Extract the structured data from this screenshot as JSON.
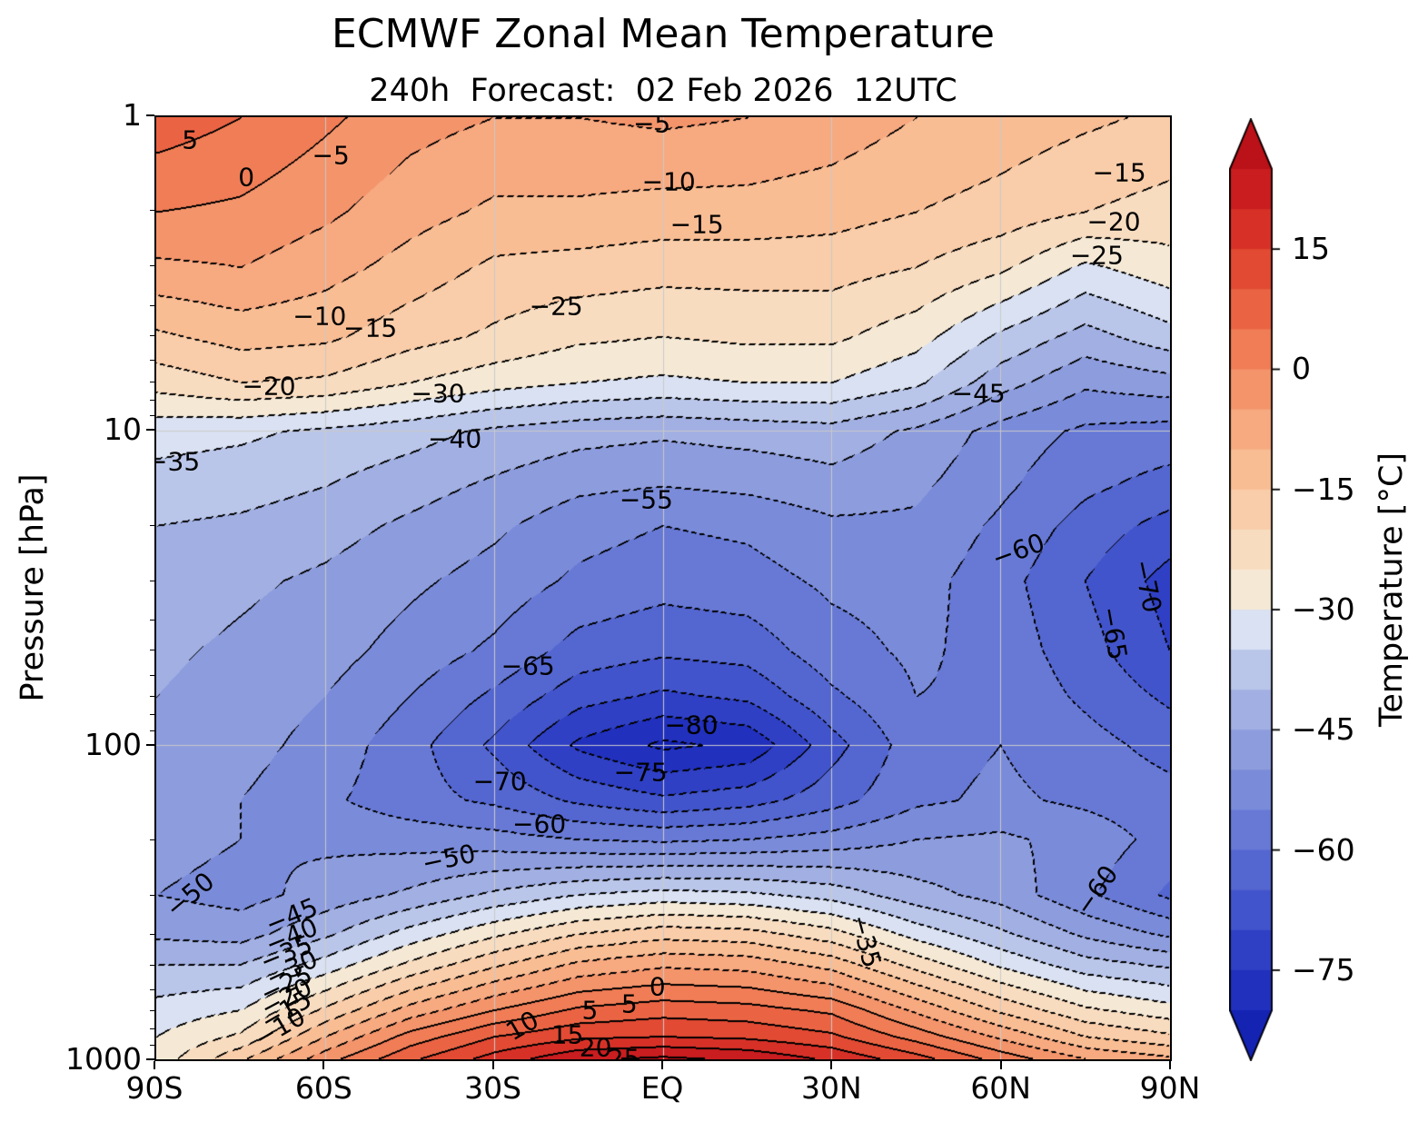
{
  "header": {
    "title": "ECMWF Zonal Mean Temperature",
    "subtitle": "240h  Forecast:  02 Feb 2026  12UTC"
  },
  "chart_data": {
    "type": "contour",
    "title": "ECMWF Zonal Mean Temperature",
    "subtitle": "240h  Forecast:  02 Feb 2026  12UTC",
    "xlabel": "",
    "ylabel": "Pressure [hPa]",
    "y_scale": "log",
    "y_range": [
      1,
      1000
    ],
    "x_range": [
      -90,
      90
    ],
    "x_ticks": [
      {
        "lat": -90,
        "label": "90S"
      },
      {
        "lat": -60,
        "label": "60S"
      },
      {
        "lat": -30,
        "label": "30S"
      },
      {
        "lat": 0,
        "label": "EQ"
      },
      {
        "lat": 30,
        "label": "30N"
      },
      {
        "lat": 60,
        "label": "60N"
      },
      {
        "lat": 90,
        "label": "90N"
      }
    ],
    "y_ticks": [
      {
        "p": 1,
        "label": "1"
      },
      {
        "p": 10,
        "label": "10"
      },
      {
        "p": 100,
        "label": "100"
      },
      {
        "p": 1000,
        "label": "1000"
      }
    ],
    "x_gridlines": [
      -60,
      -30,
      0,
      30,
      60
    ],
    "y_gridlines": [
      10,
      100
    ],
    "grid_color": "#c9c9c9",
    "line_color": "#000000",
    "levels_step": 5,
    "fill_min": -80,
    "fill_max": 25,
    "under_color": "#1423b2",
    "over_color": "#bb1118",
    "band_colors": [
      "#2130bd",
      "#2f40c5",
      "#4254cb",
      "#5466d0",
      "#6779d5",
      "#7a8bd9",
      "#8d9cdd",
      "#a1afe2",
      "#bac6e9",
      "#d9e1f2",
      "#f5e9d5",
      "#f8dcc0",
      "#f9cda9",
      "#f9bd94",
      "#f7a980",
      "#f4946b",
      "#f07d56",
      "#ea6444",
      "#e24a33",
      "#d73127",
      "#c91d20"
    ],
    "colorbar": {
      "label": "Temperature [°C]",
      "top_value": 25,
      "bottom_value": -80,
      "ticks": [
        {
          "v": 15,
          "label": "15"
        },
        {
          "v": 0,
          "label": "0"
        },
        {
          "v": -15,
          "label": "−15"
        },
        {
          "v": -30,
          "label": "−30"
        },
        {
          "v": -45,
          "label": "−45"
        },
        {
          "v": -60,
          "label": "−60"
        },
        {
          "v": -75,
          "label": "−75"
        }
      ]
    },
    "grid": {
      "lats": [
        -90,
        -75,
        -60,
        -45,
        -30,
        -15,
        0,
        15,
        30,
        45,
        60,
        75,
        90
      ],
      "pressures": [
        1,
        2,
        3,
        5,
        7,
        10,
        15,
        20,
        30,
        50,
        70,
        100,
        150,
        200,
        300,
        400,
        500,
        700,
        850,
        1000
      ],
      "temps": [
        [
          8,
          5,
          1,
          -3,
          -5,
          -5,
          -4,
          -5,
          -7,
          -10,
          -12,
          -14,
          -16
        ],
        [
          0,
          -1,
          -4,
          -8,
          -11,
          -11,
          -12,
          -12,
          -13,
          -15,
          -17,
          -20,
          -22
        ],
        [
          -6,
          -5,
          -8,
          -12,
          -16,
          -17,
          -18,
          -18,
          -18,
          -20,
          -24,
          -31,
          -27
        ],
        [
          -16,
          -13,
          -14,
          -18,
          -21,
          -24,
          -25,
          -24,
          -24,
          -28,
          -36,
          -42,
          -37
        ],
        [
          -23,
          -20,
          -21,
          -25,
          -28,
          -30,
          -31,
          -30,
          -30,
          -34,
          -43,
          -49,
          -47
        ],
        [
          -33,
          -34,
          -36,
          -38,
          -41,
          -43,
          -44,
          -43,
          -42,
          -46,
          -52,
          -56,
          -57
        ],
        [
          -37,
          -38,
          -40,
          -43,
          -46,
          -49,
          -50,
          -49,
          -47,
          -49,
          -54,
          -59,
          -62
        ],
        [
          -40,
          -41,
          -43,
          -46,
          -49,
          -53,
          -55,
          -54,
          -51,
          -51,
          -56,
          -62,
          -67
        ],
        [
          -42,
          -44,
          -46,
          -49,
          -52,
          -56,
          -58,
          -57,
          -54,
          -53,
          -58,
          -65,
          -72
        ],
        [
          -44,
          -46,
          -48,
          -52,
          -56,
          -62,
          -64,
          -63,
          -57,
          -54,
          -57,
          -63,
          -70
        ],
        [
          -45,
          -47,
          -50,
          -55,
          -61,
          -68,
          -71,
          -69,
          -61,
          -55,
          -56,
          -61,
          -66
        ],
        [
          -46,
          -48,
          -52,
          -58,
          -66,
          -76,
          -81,
          -79,
          -67,
          -57,
          -55,
          -58,
          -62
        ],
        [
          -47,
          -50,
          -54,
          -58,
          -61,
          -66,
          -69,
          -67,
          -62,
          -56,
          -54,
          -56,
          -58
        ],
        [
          -48,
          -50,
          -51,
          -52,
          -53,
          -55,
          -56,
          -55,
          -53,
          -50,
          -49,
          -52,
          -57
        ],
        [
          -50,
          -52,
          -48,
          -44,
          -39,
          -35,
          -33,
          -34,
          -37,
          -43,
          -47,
          -54,
          -61
        ],
        [
          -46,
          -47,
          -41,
          -33,
          -26,
          -20,
          -17,
          -18,
          -23,
          -32,
          -39,
          -46,
          -51
        ],
        [
          -40,
          -40,
          -33,
          -24,
          -16,
          -9,
          -6,
          -7,
          -12,
          -22,
          -31,
          -38,
          -41
        ],
        [
          -33,
          -30,
          -19,
          -8,
          0,
          6,
          8,
          7,
          4,
          -6,
          -16,
          -24,
          -28
        ],
        [
          -30,
          -24,
          -10,
          2,
          10,
          14,
          15,
          14,
          11,
          3,
          -6,
          -15,
          -19
        ],
        [
          -28,
          -16,
          -2,
          9,
          17,
          24,
          26,
          24,
          19,
          12,
          3,
          -5,
          -9
        ]
      ]
    },
    "contour_labels": [
      {
        "v": "5",
        "lat": -84,
        "p": 1.18
      },
      {
        "v": "0",
        "lat": -74,
        "p": 1.55
      },
      {
        "v": "−5",
        "lat": -59,
        "p": 1.32
      },
      {
        "v": "−5",
        "lat": -2,
        "p": 1.05
      },
      {
        "v": "−10",
        "lat": 1,
        "p": 1.6
      },
      {
        "v": "−15",
        "lat": 6,
        "p": 2.2
      },
      {
        "v": "−15",
        "lat": 81,
        "p": 1.5
      },
      {
        "v": "−20",
        "lat": 80,
        "p": 2.15
      },
      {
        "v": "−25",
        "lat": 77,
        "p": 2.75
      },
      {
        "v": "−10",
        "lat": -61,
        "p": 4.3
      },
      {
        "v": "−15",
        "lat": -52,
        "p": 4.7
      },
      {
        "v": "−25",
        "lat": -19,
        "p": 4.0
      },
      {
        "v": "−20",
        "lat": -70,
        "p": 7.2
      },
      {
        "v": "−30",
        "lat": -40,
        "p": 7.6
      },
      {
        "v": "−45",
        "lat": 56,
        "p": 7.6
      },
      {
        "v": "−40",
        "lat": -37,
        "p": 10.6
      },
      {
        "v": "−35",
        "lat": -87,
        "p": 12.5
      },
      {
        "v": "−55",
        "lat": -3,
        "p": 16.5
      },
      {
        "v": "−60",
        "lat": 63,
        "p": 24,
        "rot": -20
      },
      {
        "v": "−70",
        "lat": 86,
        "p": 31,
        "rot": 78
      },
      {
        "v": "−65",
        "lat": 80,
        "p": 44,
        "rot": 80
      },
      {
        "v": "−65",
        "lat": -24,
        "p": 56
      },
      {
        "v": "−80",
        "lat": 5,
        "p": 86
      },
      {
        "v": "−75",
        "lat": -4,
        "p": 122
      },
      {
        "v": "−70",
        "lat": -29,
        "p": 130
      },
      {
        "v": "−60",
        "lat": -22,
        "p": 178
      },
      {
        "v": "−50",
        "lat": -38,
        "p": 230,
        "rot": -12
      },
      {
        "v": "−50",
        "lat": -84,
        "p": 300,
        "rot": -40
      },
      {
        "v": "−60",
        "lat": 77,
        "p": 290,
        "rot": -55
      },
      {
        "v": "−35",
        "lat": 36,
        "p": 420,
        "rot": 75
      },
      {
        "v": "−45",
        "lat": -66,
        "p": 350,
        "rot": -22
      },
      {
        "v": "−40",
        "lat": -66,
        "p": 405,
        "rot": -22
      },
      {
        "v": "−35",
        "lat": -67,
        "p": 460,
        "rot": -22
      },
      {
        "v": "−30",
        "lat": -66,
        "p": 515,
        "rot": -25
      },
      {
        "v": "−25",
        "lat": -67,
        "p": 575,
        "rot": -25
      },
      {
        "v": "−20",
        "lat": -67,
        "p": 635,
        "rot": -28
      },
      {
        "v": "−15",
        "lat": -67,
        "p": 700,
        "rot": -30
      },
      {
        "v": "−10",
        "lat": -68,
        "p": 790,
        "rot": -30
      },
      {
        "v": "5",
        "lat": -6,
        "p": 665
      },
      {
        "v": "0",
        "lat": -1,
        "p": 585
      },
      {
        "v": "5",
        "lat": -13,
        "p": 700
      },
      {
        "v": "10",
        "lat": -25,
        "p": 780,
        "rot": -30
      },
      {
        "v": "15",
        "lat": -17,
        "p": 835
      },
      {
        "v": "20",
        "lat": -12,
        "p": 915
      },
      {
        "v": "25",
        "lat": -7,
        "p": 995
      }
    ]
  }
}
